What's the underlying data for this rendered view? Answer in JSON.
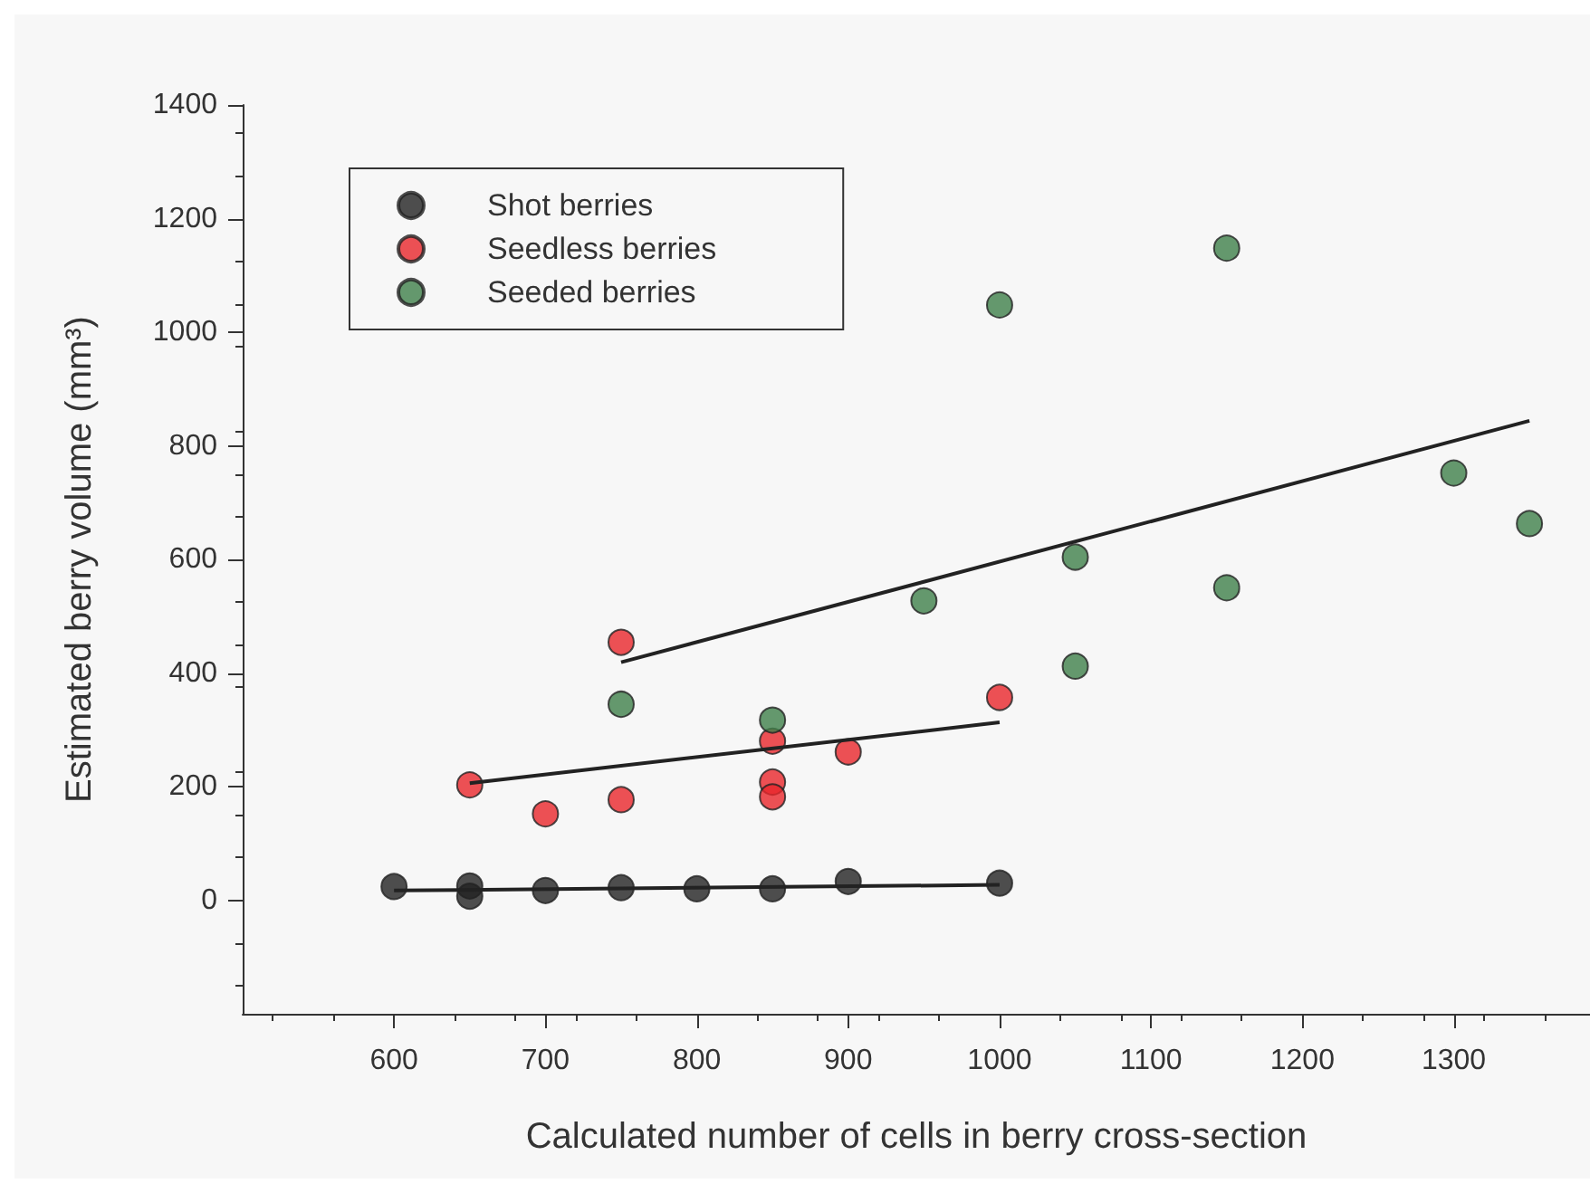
{
  "chart_data": {
    "type": "scatter",
    "xlabel": "Calculated number of cells in berry cross-section",
    "ylabel": "Estimated berry volume (mm³)",
    "xlim": [
      500,
      1390
    ],
    "xticks": [
      600,
      700,
      800,
      900,
      1000,
      1100,
      1200,
      1300
    ],
    "ylim": [
      -200,
      1400
    ],
    "yticks": [
      0,
      200,
      400,
      600,
      800,
      1000,
      1200,
      1400
    ],
    "grid": false,
    "legend": "top left",
    "series": [
      {
        "name": "Shot berries",
        "color": "#222222",
        "x": [
          600,
          650,
          650,
          700,
          750,
          800,
          850,
          900,
          1000
        ],
        "values": [
          24,
          25,
          7,
          17,
          22,
          20,
          20,
          33,
          30
        ],
        "marker": "circle"
      },
      {
        "name": "Seedless berries",
        "color": "#e8262b",
        "x": [
          650,
          700,
          750,
          750,
          850,
          850,
          850,
          900,
          1000
        ],
        "values": [
          203,
          152,
          177,
          454,
          280,
          208,
          182,
          261,
          357
        ],
        "marker": "circle"
      },
      {
        "name": "Seeded berries",
        "color": "#3f7f4a",
        "x": [
          750,
          850,
          950,
          1000,
          1050,
          1050,
          1150,
          1150,
          1300,
          1350
        ],
        "values": [
          345,
          317,
          527,
          1048,
          604,
          412,
          1148,
          550,
          752,
          663
        ],
        "marker": "circle"
      },
      {
        "type": "line",
        "color": "#222222",
        "x": [
          600,
          1000
        ],
        "values": [
          17,
          27
        ],
        "marker": "none"
      },
      {
        "type": "line",
        "color": "#222222",
        "x": [
          650,
          1000
        ],
        "values": [
          206,
          313
        ],
        "marker": "none"
      },
      {
        "type": "line",
        "color": "#222222",
        "x": [
          750,
          1350
        ],
        "values": [
          419,
          844
        ],
        "marker": "none"
      }
    ]
  }
}
